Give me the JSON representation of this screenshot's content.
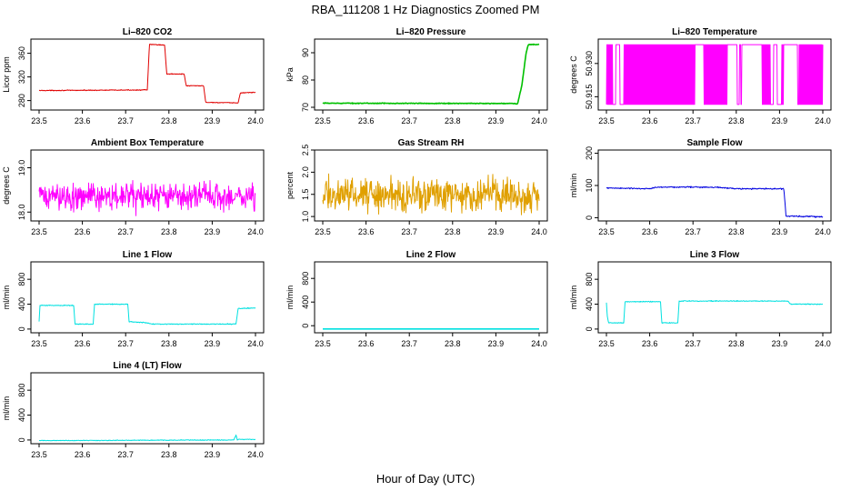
{
  "figure": {
    "title": "RBA_111208  1 Hz Diagnostics Zoomed PM",
    "xlabel": "Hour of Day (UTC)"
  },
  "chart_data": [
    {
      "type": "line",
      "title": "Li–820 CO2",
      "ylabel": "Licor ppm",
      "color": "#e00000",
      "xlim": [
        23.5,
        24.0
      ],
      "ylim": [
        264,
        384
      ],
      "x_ticks": [
        "23.5",
        "23.6",
        "23.7",
        "23.8",
        "23.9",
        "24.0"
      ],
      "y_ticks": [
        "280",
        "320",
        "360"
      ],
      "y_tick_values": [
        280,
        320,
        360
      ],
      "x": [
        23.5,
        23.75,
        23.755,
        23.79,
        23.795,
        23.835,
        23.84,
        23.88,
        23.885,
        23.96,
        23.965,
        24.0
      ],
      "y": [
        297,
        298,
        375,
        374,
        325,
        325,
        305,
        305,
        277,
        276,
        293,
        294
      ],
      "noise": 1
    },
    {
      "type": "line",
      "title": "Li–820 Pressure",
      "ylabel": "kPa",
      "color": "#00c000",
      "xlim": [
        23.5,
        24.0
      ],
      "ylim": [
        69,
        95
      ],
      "x_ticks": [
        "23.5",
        "23.6",
        "23.7",
        "23.8",
        "23.9",
        "24.0"
      ],
      "y_ticks": [
        "70",
        "80",
        "90"
      ],
      "y_tick_values": [
        70,
        80,
        90
      ],
      "x": [
        23.5,
        23.94,
        23.95,
        23.96,
        23.97,
        23.975,
        24.0
      ],
      "y": [
        71.5,
        71.4,
        71.2,
        78,
        90,
        93,
        93
      ],
      "noise": 0.2
    },
    {
      "type": "line",
      "title": "Li–820 Temperature",
      "ylabel": "degrees C",
      "color": "#ff00ff",
      "xlim": [
        23.5,
        24.0
      ],
      "ylim": [
        50.909,
        50.941
      ],
      "x_ticks": [
        "23.5",
        "23.6",
        "23.7",
        "23.8",
        "23.9",
        "24.0"
      ],
      "y_ticks": [
        "50.915",
        "50.930"
      ],
      "y_tick_values": [
        50.915,
        50.93
      ],
      "levels": [
        50.9115,
        50.9385
      ],
      "style": "toggle"
    },
    {
      "type": "line",
      "title": "Ambient Box Temperature",
      "ylabel": "degrees C",
      "color": "#ff00ff",
      "xlim": [
        23.5,
        24.0
      ],
      "ylim": [
        17.8,
        19.4
      ],
      "x_ticks": [
        "23.5",
        "23.6",
        "23.7",
        "23.8",
        "23.9",
        "24.0"
      ],
      "y_ticks": [
        "18.0",
        "19.0"
      ],
      "y_tick_values": [
        18.0,
        19.0
      ],
      "x": [
        23.5,
        24.0
      ],
      "y": [
        18.35,
        18.35
      ],
      "noise": 0.45
    },
    {
      "type": "line",
      "title": "Gas Stream RH",
      "ylabel": "percent",
      "color": "#e0a000",
      "xlim": [
        23.5,
        24.0
      ],
      "ylim": [
        0.9,
        2.5
      ],
      "x_ticks": [
        "23.5",
        "23.6",
        "23.7",
        "23.8",
        "23.9",
        "24.0"
      ],
      "y_ticks": [
        "1.0",
        "1.5",
        "2.0",
        "2.5"
      ],
      "y_tick_values": [
        1.0,
        1.5,
        2.0,
        2.5
      ],
      "x": [
        23.5,
        24.0
      ],
      "y": [
        1.5,
        1.5
      ],
      "noise": 0.55
    },
    {
      "type": "line",
      "title": "Sample Flow",
      "ylabel": "ml/min",
      "color": "#0000e0",
      "xlim": [
        23.5,
        24.0
      ],
      "ylim": [
        -10,
        210
      ],
      "x_ticks": [
        "23.5",
        "23.6",
        "23.7",
        "23.8",
        "23.9",
        "24.0"
      ],
      "y_ticks": [
        "0",
        "100",
        "200"
      ],
      "y_tick_values": [
        0,
        100,
        200
      ],
      "x": [
        23.5,
        23.6,
        23.62,
        23.75,
        23.8,
        23.91,
        23.915,
        24.0
      ],
      "y": [
        92,
        90,
        95,
        95,
        90,
        90,
        5,
        3
      ],
      "noise": 3
    },
    {
      "type": "line",
      "title": "Line 1 Flow",
      "ylabel": "ml/min",
      "color": "#00e0e0",
      "xlim": [
        23.5,
        24.0
      ],
      "ylim": [
        -60,
        1080
      ],
      "x_ticks": [
        "23.5",
        "23.6",
        "23.7",
        "23.8",
        "23.9",
        "24.0"
      ],
      "y_ticks": [
        "0",
        "400",
        "800"
      ],
      "y_tick_values": [
        0,
        400,
        800
      ],
      "x": [
        23.5,
        23.502,
        23.58,
        23.583,
        23.625,
        23.628,
        23.705,
        23.708,
        23.75,
        23.76,
        23.955,
        23.96,
        24.0
      ],
      "y": [
        120,
        380,
        380,
        80,
        80,
        400,
        400,
        120,
        100,
        80,
        80,
        330,
        340
      ],
      "noise": 10
    },
    {
      "type": "line",
      "title": "Line 2 Flow",
      "ylabel": "ml/min",
      "color": "#00e0e0",
      "xlim": [
        23.5,
        24.0
      ],
      "ylim": [
        -120,
        1080
      ],
      "x_ticks": [
        "23.5",
        "23.6",
        "23.7",
        "23.8",
        "23.9",
        "24.0"
      ],
      "y_ticks": [
        "0",
        "400",
        "800"
      ],
      "y_tick_values": [
        0,
        400,
        800
      ],
      "x": [
        23.5,
        24.0
      ],
      "y": [
        -55,
        -55
      ],
      "noise": 0
    },
    {
      "type": "line",
      "title": "Line 3 Flow",
      "ylabel": "ml/min",
      "color": "#00e0e0",
      "xlim": [
        23.5,
        24.0
      ],
      "ylim": [
        -60,
        1080
      ],
      "x_ticks": [
        "23.5",
        "23.6",
        "23.7",
        "23.8",
        "23.9",
        "24.0"
      ],
      "y_ticks": [
        "0",
        "400",
        "800"
      ],
      "y_tick_values": [
        0,
        400,
        800
      ],
      "x": [
        23.5,
        23.502,
        23.505,
        23.54,
        23.543,
        23.625,
        23.628,
        23.665,
        23.668,
        23.92,
        23.925,
        24.0
      ],
      "y": [
        420,
        200,
        100,
        100,
        440,
        440,
        100,
        100,
        450,
        450,
        400,
        400
      ],
      "noise": 10
    },
    {
      "type": "line",
      "title": "Line 4 (LT) Flow",
      "ylabel": "ml/min",
      "color": "#00e0e0",
      "xlim": [
        23.5,
        24.0
      ],
      "ylim": [
        -60,
        1080
      ],
      "x_ticks": [
        "23.5",
        "23.6",
        "23.7",
        "23.8",
        "23.9",
        "24.0"
      ],
      "y_ticks": [
        "0",
        "400",
        "800"
      ],
      "y_tick_values": [
        0,
        400,
        800
      ],
      "x": [
        23.5,
        23.95,
        23.955,
        23.958,
        23.96,
        24.0
      ],
      "y": [
        -10,
        0,
        80,
        0,
        10,
        10
      ],
      "noise": 8
    }
  ]
}
